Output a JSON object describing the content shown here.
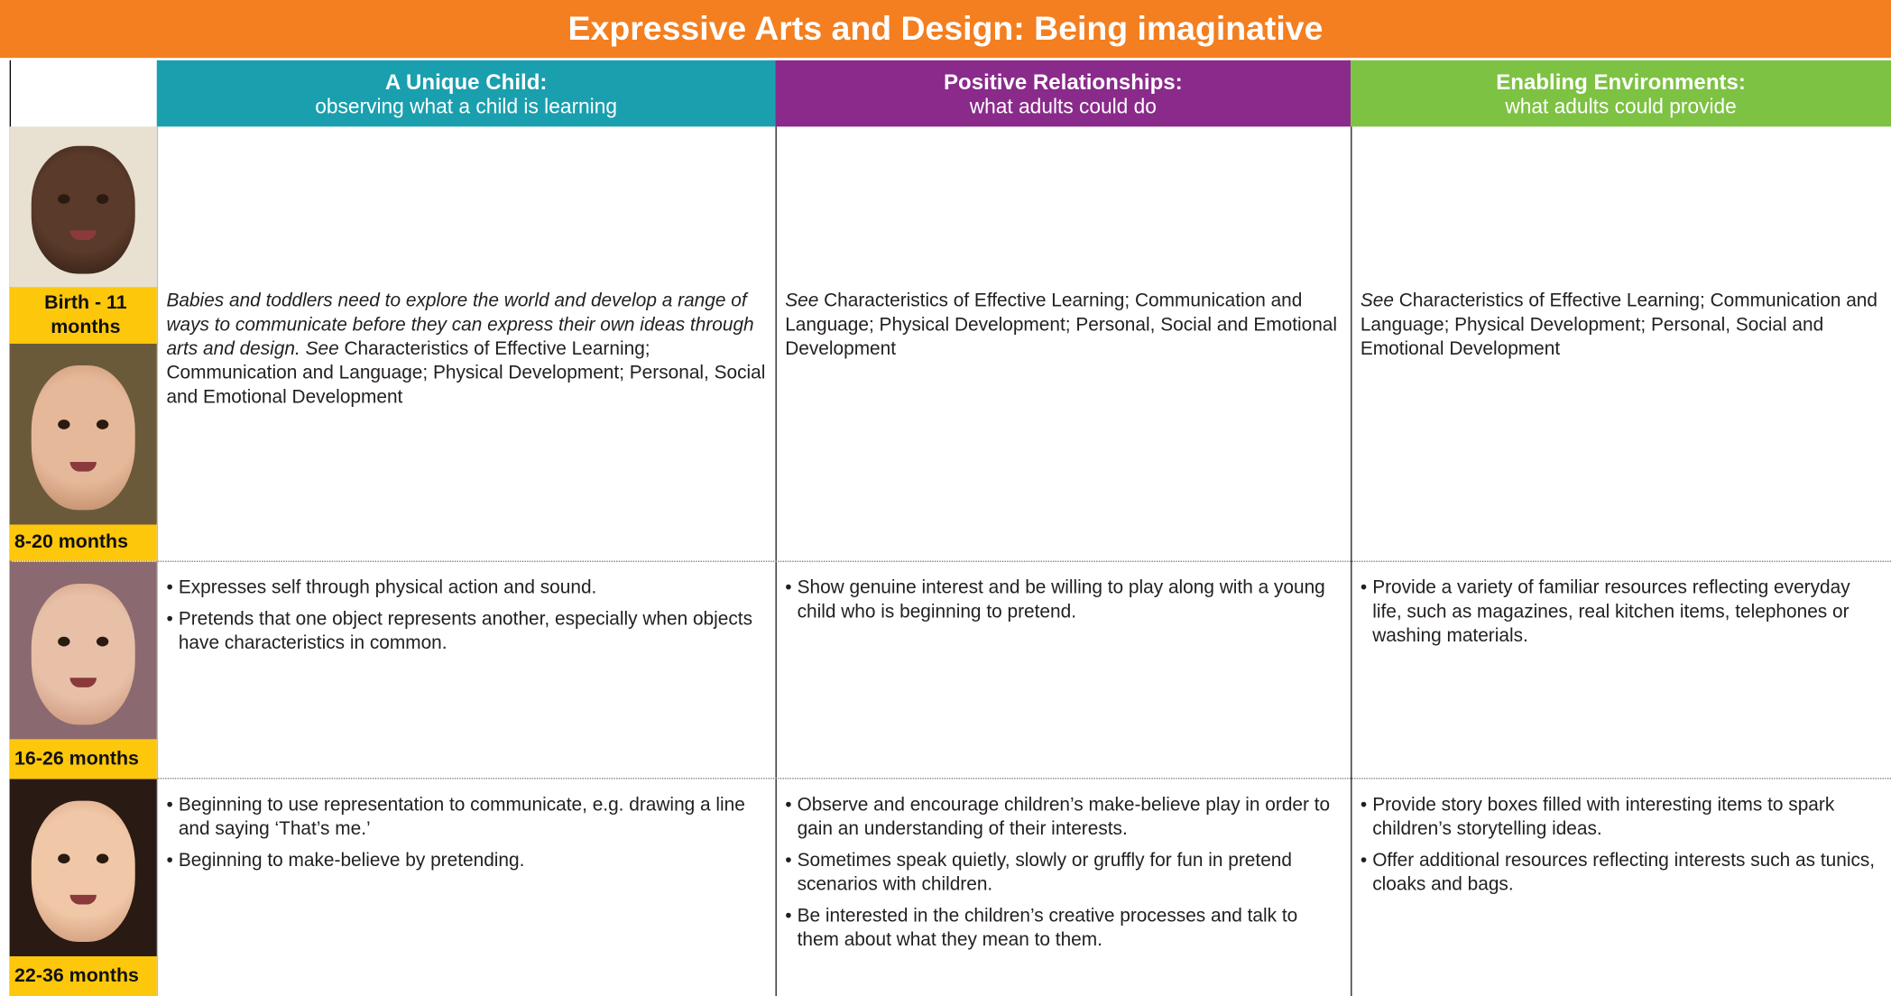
{
  "header": {
    "title": "Expressive Arts and Design: Being imaginative"
  },
  "columns": [
    {
      "title": "A Unique Child:",
      "subtitle": "observing what a child is learning"
    },
    {
      "title": "Positive Relationships:",
      "subtitle": "what adults could do"
    },
    {
      "title": "Enabling Environments:",
      "subtitle": "what adults could provide"
    }
  ],
  "rows": [
    {
      "age_labels": [
        "Birth - 11 months",
        "8-20 months"
      ],
      "cells": [
        {
          "italic": "Babies and toddlers need to explore the world and develop a range of ways to communicate before they can express their own ideas through arts and design. See",
          "text": "Characteristics of Effective Learning; Communication and Language; Physical Development; Personal, Social and Emotional Development"
        },
        {
          "italic": "See",
          "text": "Characteristics of Effective Learning; Communication and Language; Physical Development; Personal, Social and Emotional Development"
        },
        {
          "italic": "See",
          "text": "Characteristics of Effective Learning; Communication and Language; Physical Development; Personal, Social and Emotional Development"
        }
      ]
    },
    {
      "age_labels": [
        "16-26 months"
      ],
      "cells": [
        {
          "bullets": [
            "Expresses self through physical action and sound.",
            "Pretends that one object represents another, especially when objects have characteristics in common."
          ]
        },
        {
          "bullets": [
            "Show genuine interest and be willing to play along with a young child who is beginning to pretend."
          ]
        },
        {
          "bullets": [
            "Provide a variety of familiar resources reflecting everyday life, such as magazines, real kitchen items, telephones or washing materials."
          ]
        }
      ]
    },
    {
      "age_labels": [
        "22-36 months"
      ],
      "cells": [
        {
          "bullets": [
            "Beginning to use representation to communicate, e.g. drawing a line and saying ‘That’s me.’",
            "Beginning to make-believe by pretending."
          ]
        },
        {
          "bullets": [
            "Observe and encourage children’s make-believe play in order to gain an understanding of their interests.",
            "Sometimes speak quietly, slowly or gruffly for fun in pretend scenarios with children.",
            "Be interested in the children’s creative processes and talk to them about what they mean to them."
          ]
        },
        {
          "bullets": [
            "Provide story boxes filled with interesting items to spark children’s storytelling ideas.",
            "Offer additional resources reflecting interests such as tunics, cloaks and bags."
          ]
        }
      ]
    }
  ]
}
